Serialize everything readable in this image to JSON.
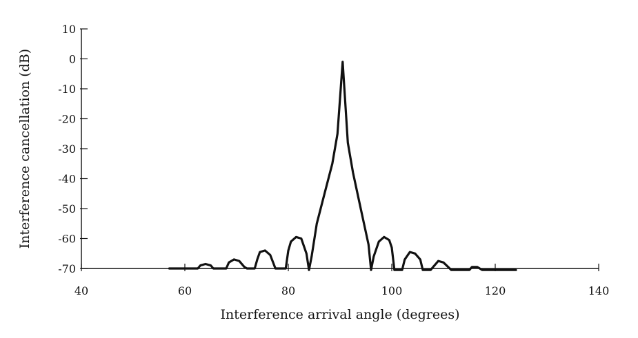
{
  "chart_data": {
    "type": "line",
    "title": "",
    "xlabel": "Interference arrival angle (degrees)",
    "ylabel": "Interference cancellation (dB)",
    "xlim": [
      40,
      140
    ],
    "ylim": [
      -70,
      10
    ],
    "xticks": [
      40,
      60,
      80,
      100,
      120,
      140
    ],
    "xtick_labels": [
      "40",
      "60",
      "80",
      "100",
      "120",
      "140"
    ],
    "yticks": [
      10,
      0,
      -10,
      -20,
      -30,
      -40,
      -50,
      -60,
      -70
    ],
    "ytick_labels": [
      "10",
      "0",
      "-10",
      "-20",
      "-30",
      "-40",
      "-50",
      "-60",
      "-70"
    ],
    "grid": false,
    "series": [
      {
        "color": "#111111",
        "x": [
          57,
          59,
          61,
          62.5,
          63,
          64,
          65,
          65.5,
          67,
          68,
          68.5,
          69.5,
          70.5,
          71.5,
          72,
          73.5,
          74,
          74.5,
          75.5,
          76.5,
          77.5,
          78,
          79.5,
          80,
          80.5,
          81.5,
          82.5,
          83.5,
          84,
          84.5,
          85.5,
          87,
          88.5,
          89.5,
          90.5,
          91.5,
          92.5,
          94,
          95.5,
          96,
          96.5,
          97.5,
          98.5,
          99.5,
          100,
          100.5,
          102,
          102.5,
          103.5,
          104.5,
          105.5,
          106,
          107.5,
          108,
          109,
          110,
          111.5,
          112,
          114,
          115,
          115.5,
          116.5,
          117.5,
          118,
          120,
          122,
          124
        ],
        "y": [
          -70,
          -70,
          -70,
          -70,
          -69,
          -68.5,
          -69,
          -70,
          -70,
          -70,
          -68,
          -67,
          -67.5,
          -69.5,
          -70,
          -70,
          -67,
          -64.5,
          -64,
          -65.5,
          -70,
          -70,
          -70,
          -64,
          -61,
          -59.5,
          -60,
          -65,
          -70.5,
          -66,
          -55,
          -45,
          -35,
          -25,
          -1,
          -28,
          -38,
          -50,
          -62,
          -70.5,
          -66,
          -61,
          -59.5,
          -60.5,
          -63,
          -70.5,
          -70.5,
          -67,
          -64.5,
          -65,
          -67,
          -70.5,
          -70.5,
          -69.5,
          -67.5,
          -68,
          -70.5,
          -70.5,
          -70.5,
          -70.5,
          -69.5,
          -69.5,
          -70.5,
          -70.5,
          -70.5,
          -70.5,
          -70.5
        ]
      }
    ]
  }
}
